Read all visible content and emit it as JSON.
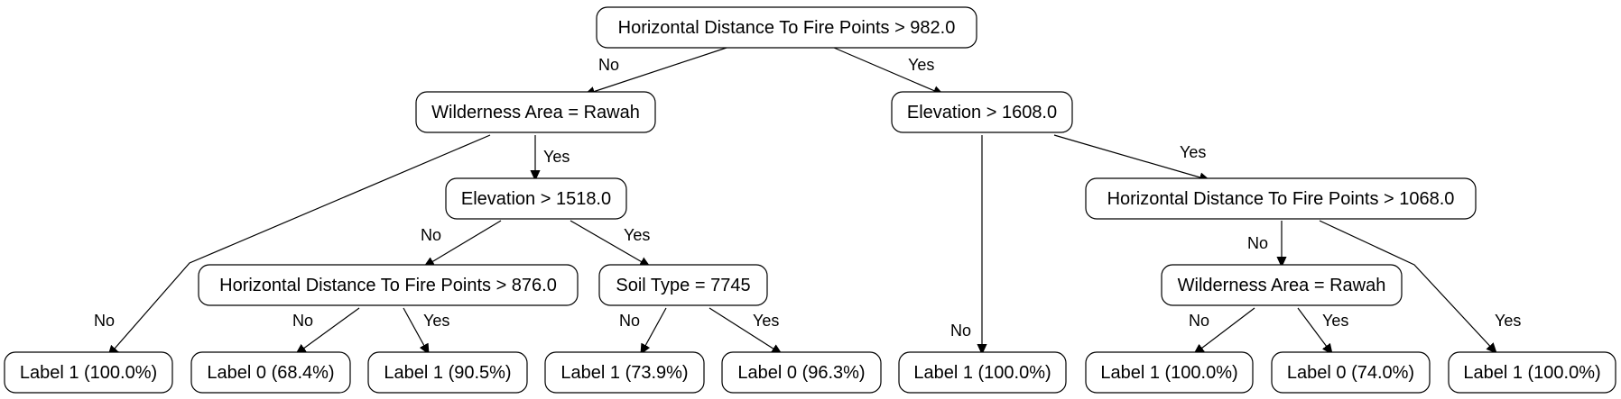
{
  "nodes": {
    "n0": "Horizontal Distance To Fire Points > 982.0",
    "n1": "Wilderness Area = Rawah",
    "n2": "Elevation > 1608.0",
    "n3": "Elevation > 1518.0",
    "n4": "Horizontal Distance To Fire Points > 1068.0",
    "n5": "Horizontal Distance To Fire Points > 876.0",
    "n6": "Soil Type = 7745",
    "n7": "Wilderness Area = Rawah",
    "l0": "Label 1 (100.0%)",
    "l1": "Label 0 (68.4%)",
    "l2": "Label 1 (90.5%)",
    "l3": "Label 1 (73.9%)",
    "l4": "Label 0 (96.3%)",
    "l5": "Label 1 (100.0%)",
    "l6": "Label 1 (100.0%)",
    "l7": "Label 0 (74.0%)",
    "l8": "Label 1 (100.0%)"
  },
  "edges": {
    "n0_n1": "No",
    "n0_n2": "Yes",
    "n1_l0": "No",
    "n1_n3": "Yes",
    "n3_n5": "No",
    "n3_n6": "Yes",
    "n5_l1": "No",
    "n5_l2": "Yes",
    "n6_l3": "No",
    "n6_l4": "Yes",
    "n2_l5": "No",
    "n2_n4": "Yes",
    "n4_n7": "No",
    "n4_l8": "Yes",
    "n7_l6": "No",
    "n7_l7": "Yes"
  }
}
